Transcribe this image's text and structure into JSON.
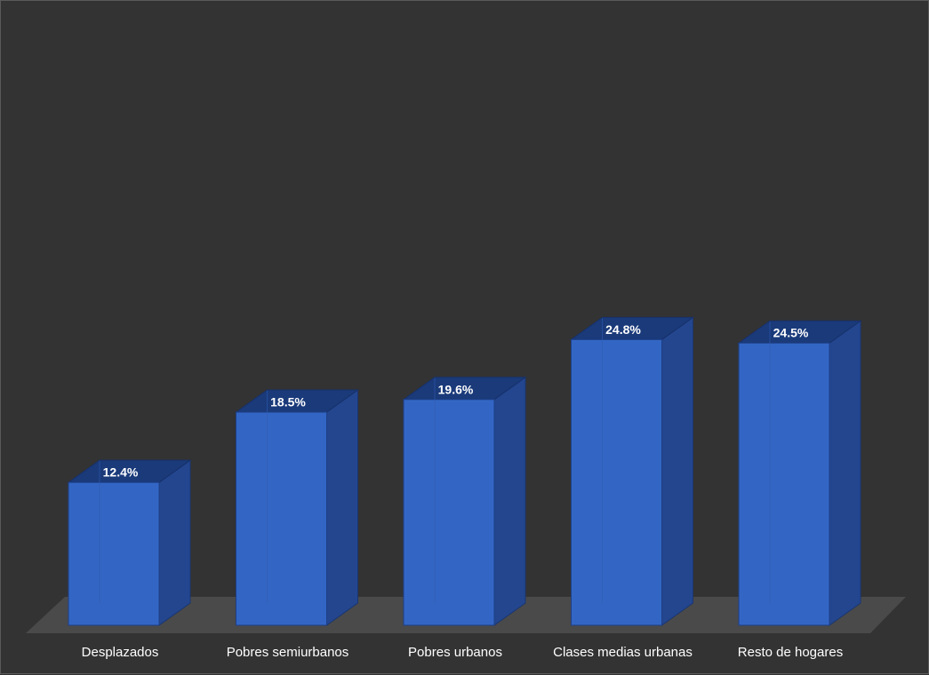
{
  "chart_data": {
    "type": "bar",
    "style": "3d-column",
    "categories": [
      "Desplazados",
      "Pobres semiurbanos",
      "Pobres urbanos",
      "Clases medias urbanas",
      "Resto de hogares"
    ],
    "values": [
      12.4,
      18.5,
      19.6,
      24.8,
      24.5
    ],
    "value_labels": [
      "12.4%",
      "18.5%",
      "19.6%",
      "24.8%",
      "24.5%"
    ],
    "title": "",
    "xlabel": "",
    "ylabel": "",
    "ylim": [
      0,
      25
    ],
    "grid": false,
    "legend": "none",
    "colors": {
      "background": "#333333",
      "bar_front": "#3366c4",
      "bar_side": "#23468f",
      "bar_top": "#1a3a7a",
      "floor": "#4a4a4a",
      "text": "#ffffff"
    }
  }
}
